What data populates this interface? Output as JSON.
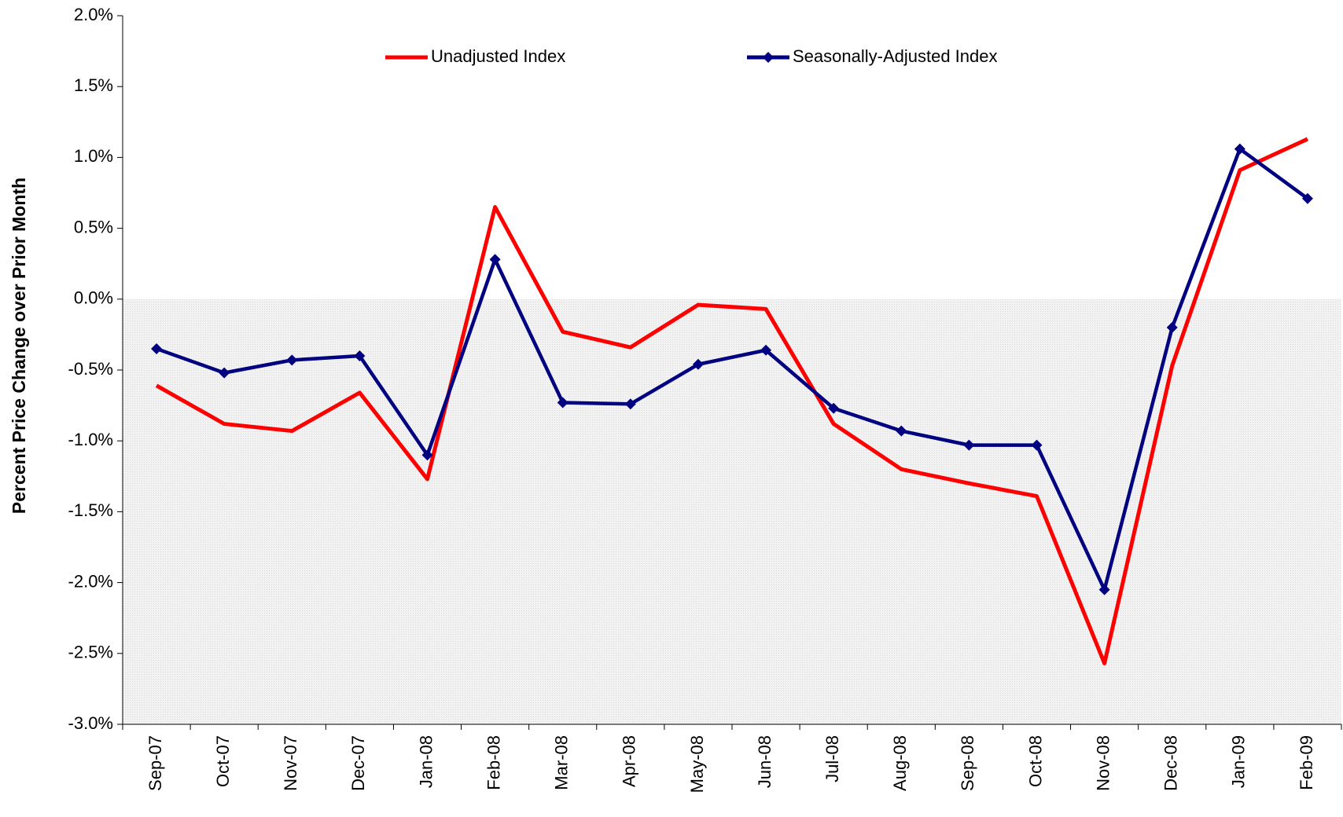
{
  "chart_data": {
    "type": "line",
    "y_label": "Percent Price Change over Prior Month",
    "categories": [
      "Sep-07",
      "Oct-07",
      "Nov-07",
      "Dec-07",
      "Jan-08",
      "Feb-08",
      "Mar-08",
      "Apr-08",
      "May-08",
      "Jun-08",
      "Jul-08",
      "Aug-08",
      "Sep-08",
      "Oct-08",
      "Nov-08",
      "Dec-08",
      "Jan-09",
      "Feb-09"
    ],
    "series": [
      {
        "name": "Unadjusted Index",
        "color": "#ff0000",
        "marker": false,
        "values": [
          -0.61,
          -0.88,
          -0.93,
          -0.66,
          -1.27,
          0.65,
          -0.23,
          -0.34,
          -0.04,
          -0.07,
          -0.88,
          -1.2,
          -1.3,
          -1.39,
          -2.57,
          -0.47,
          0.91,
          1.13
        ]
      },
      {
        "name": "Seasonally-Adjusted Index",
        "color": "#000080",
        "marker": true,
        "values": [
          -0.35,
          -0.52,
          -0.43,
          -0.4,
          -1.1,
          0.28,
          -0.73,
          -0.74,
          -0.46,
          -0.36,
          -0.77,
          -0.93,
          -1.03,
          -1.03,
          -2.05,
          -0.2,
          1.06,
          0.71
        ]
      }
    ],
    "ylim": [
      -3,
      2
    ],
    "yticks": [
      {
        "value": -3,
        "label": "-3.0%"
      },
      {
        "value": -2.5,
        "label": "-2.5%"
      },
      {
        "value": -2,
        "label": "-2.0%"
      },
      {
        "value": -1.5,
        "label": "-1.5%"
      },
      {
        "value": -1,
        "label": "-1.0%"
      },
      {
        "value": -0.5,
        "label": "-0.5%"
      },
      {
        "value": 0,
        "label": "0.0%"
      },
      {
        "value": 0.5,
        "label": "0.5%"
      },
      {
        "value": 1,
        "label": "1.0%"
      },
      {
        "value": 1.5,
        "label": "1.5%"
      },
      {
        "value": 2,
        "label": "2.0%"
      }
    ],
    "legend": "top"
  }
}
